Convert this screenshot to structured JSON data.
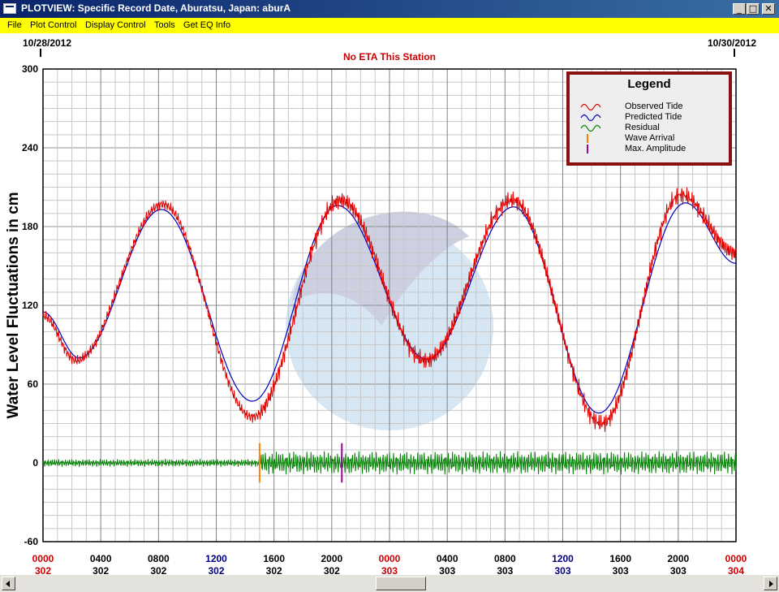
{
  "window": {
    "title": "PLOTVIEW: Specific Record Date, Aburatsu, Japan: aburA",
    "controls": {
      "minimize": "_",
      "maximize": "□",
      "close": "✕"
    }
  },
  "menu": {
    "items": [
      {
        "id": "file",
        "label": "File"
      },
      {
        "id": "plot-control",
        "label": "Plot Control"
      },
      {
        "id": "display-control",
        "label": "Display Control"
      },
      {
        "id": "tools",
        "label": "Tools"
      },
      {
        "id": "get-eq-info",
        "label": "Get EQ Info"
      }
    ]
  },
  "plot": {
    "date_start": "10/28/2012",
    "date_end": "10/30/2012",
    "status": "No ETA This Station",
    "ylabel": "Water Level Fluctuations in cm",
    "colors": {
      "observed": "#e00000",
      "predicted": "#0000c0",
      "residual": "#008000",
      "wave_arrival": "#ff8000",
      "max_amplitude": "#a000a0",
      "tick_day_start": "#cc0000",
      "tick_noon": "#000080"
    }
  },
  "legend": {
    "title": "Legend",
    "entries": [
      {
        "id": "observed-tide",
        "label": "Observed Tide",
        "symbol": "wave",
        "color": "#e00000"
      },
      {
        "id": "predicted-tide",
        "label": "Predicted Tide",
        "symbol": "wave",
        "color": "#0000c0"
      },
      {
        "id": "residual",
        "label": "Residual",
        "symbol": "wave",
        "color": "#008000"
      },
      {
        "id": "wave-arrival",
        "label": "Wave Arrival",
        "symbol": "bar",
        "color": "#ff8000"
      },
      {
        "id": "max-amplitude",
        "label": "Max. Amplitude",
        "symbol": "bar",
        "color": "#a000a0"
      }
    ]
  },
  "chart_data": {
    "type": "line",
    "ylim": [
      -60,
      300
    ],
    "xlim": [
      0,
      48
    ],
    "yticks": [
      -60,
      0,
      60,
      120,
      180,
      240,
      300
    ],
    "grid": true,
    "legend_position": "top-right",
    "x_ticks": [
      {
        "x": 0,
        "time": "0000",
        "day": "302",
        "kind": "day"
      },
      {
        "x": 4,
        "time": "0400",
        "day": "302",
        "kind": "normal"
      },
      {
        "x": 8,
        "time": "0800",
        "day": "302",
        "kind": "normal"
      },
      {
        "x": 12,
        "time": "1200",
        "day": "302",
        "kind": "noon"
      },
      {
        "x": 16,
        "time": "1600",
        "day": "302",
        "kind": "normal"
      },
      {
        "x": 20,
        "time": "2000",
        "day": "302",
        "kind": "normal"
      },
      {
        "x": 24,
        "time": "0000",
        "day": "303",
        "kind": "day"
      },
      {
        "x": 28,
        "time": "0400",
        "day": "303",
        "kind": "normal"
      },
      {
        "x": 32,
        "time": "0800",
        "day": "303",
        "kind": "normal"
      },
      {
        "x": 36,
        "time": "1200",
        "day": "303",
        "kind": "noon"
      },
      {
        "x": 40,
        "time": "1600",
        "day": "303",
        "kind": "normal"
      },
      {
        "x": 44,
        "time": "2000",
        "day": "303",
        "kind": "normal"
      },
      {
        "x": 48,
        "time": "0000",
        "day": "304",
        "kind": "day"
      }
    ],
    "predicted": {
      "x": [
        0,
        2.5,
        8.2,
        14.5,
        20.4,
        26.6,
        32.6,
        38.5,
        44.5,
        48
      ],
      "y": [
        115,
        80,
        193,
        47,
        196,
        79,
        195,
        38,
        198,
        152
      ]
    },
    "observed": {
      "x": [
        0,
        2.3,
        8.3,
        14.5,
        20.6,
        26.5,
        32.5,
        38.7,
        44.2,
        48
      ],
      "y": [
        112,
        78,
        197,
        35,
        200,
        78,
        200,
        30,
        204,
        160
      ]
    },
    "residual_baseline": 0,
    "residual_amplitude_segments": [
      {
        "x0": 0,
        "x1": 15.0,
        "amp": 3
      },
      {
        "x0": 15.0,
        "x1": 48,
        "amp": 9
      }
    ],
    "wave_arrival_x": 15.0,
    "max_amplitude_x": 20.7,
    "marker_range": [
      -15,
      15
    ]
  }
}
